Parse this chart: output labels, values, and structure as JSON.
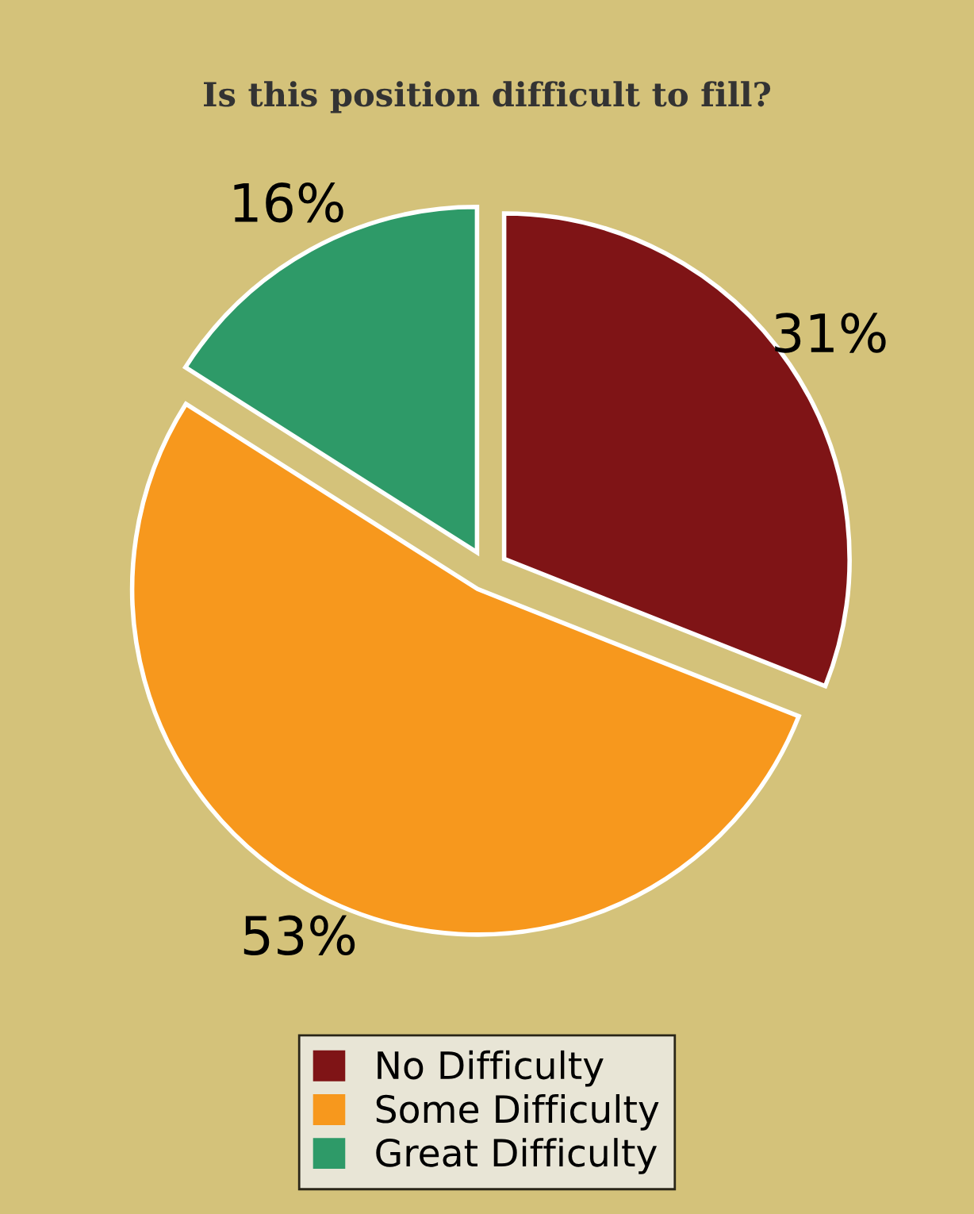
{
  "chart_data": {
    "type": "pie",
    "title": "Is this position difficult to fill?",
    "categories": [
      "No Difficulty",
      "Some Difficulty",
      "Great Difficulty"
    ],
    "values": [
      31,
      53,
      16
    ],
    "value_labels": [
      "31%",
      "53%",
      "16%"
    ],
    "colors": [
      "#7f1416",
      "#f7981d",
      "#2e9a68"
    ],
    "legend": "bottom"
  }
}
